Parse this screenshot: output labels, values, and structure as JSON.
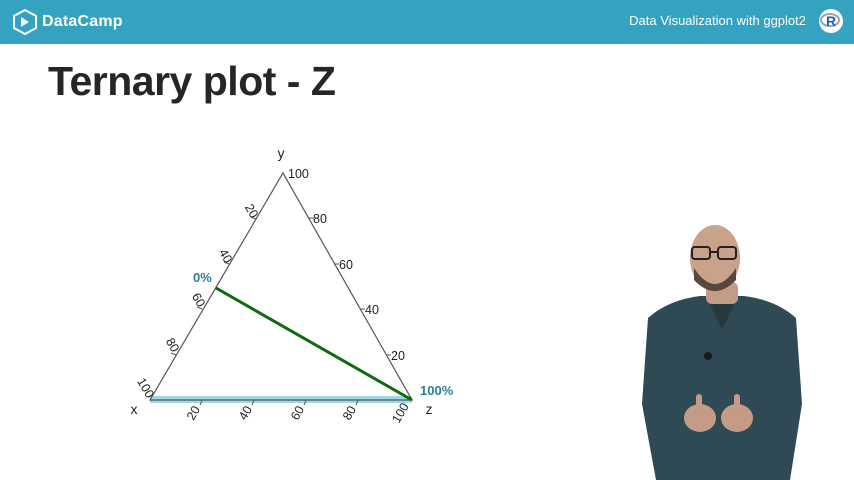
{
  "header": {
    "brand": "DataCamp",
    "course_title": "Data Visualization with ggplot2",
    "badge_letter": "R",
    "bar_color": "#33a3c1"
  },
  "slide": {
    "title": "Ternary plot - Z"
  },
  "ternary": {
    "axis_labels": {
      "x": "x",
      "y": "y",
      "z": "z"
    },
    "y_ticks": [
      "100",
      "80",
      "60",
      "40",
      "20"
    ],
    "x_ticks": [
      "20",
      "40",
      "60",
      "80",
      "100"
    ],
    "z_ticks": [
      "20",
      "40",
      "60",
      "80",
      "100"
    ],
    "annotations": {
      "start": "0%",
      "end": "100%"
    },
    "highlight_color": "#8fd0e0",
    "line_color": "#0f6b0f",
    "accent_text_color": "#2a7f9a"
  },
  "presenter": {
    "description": "presenter video"
  }
}
